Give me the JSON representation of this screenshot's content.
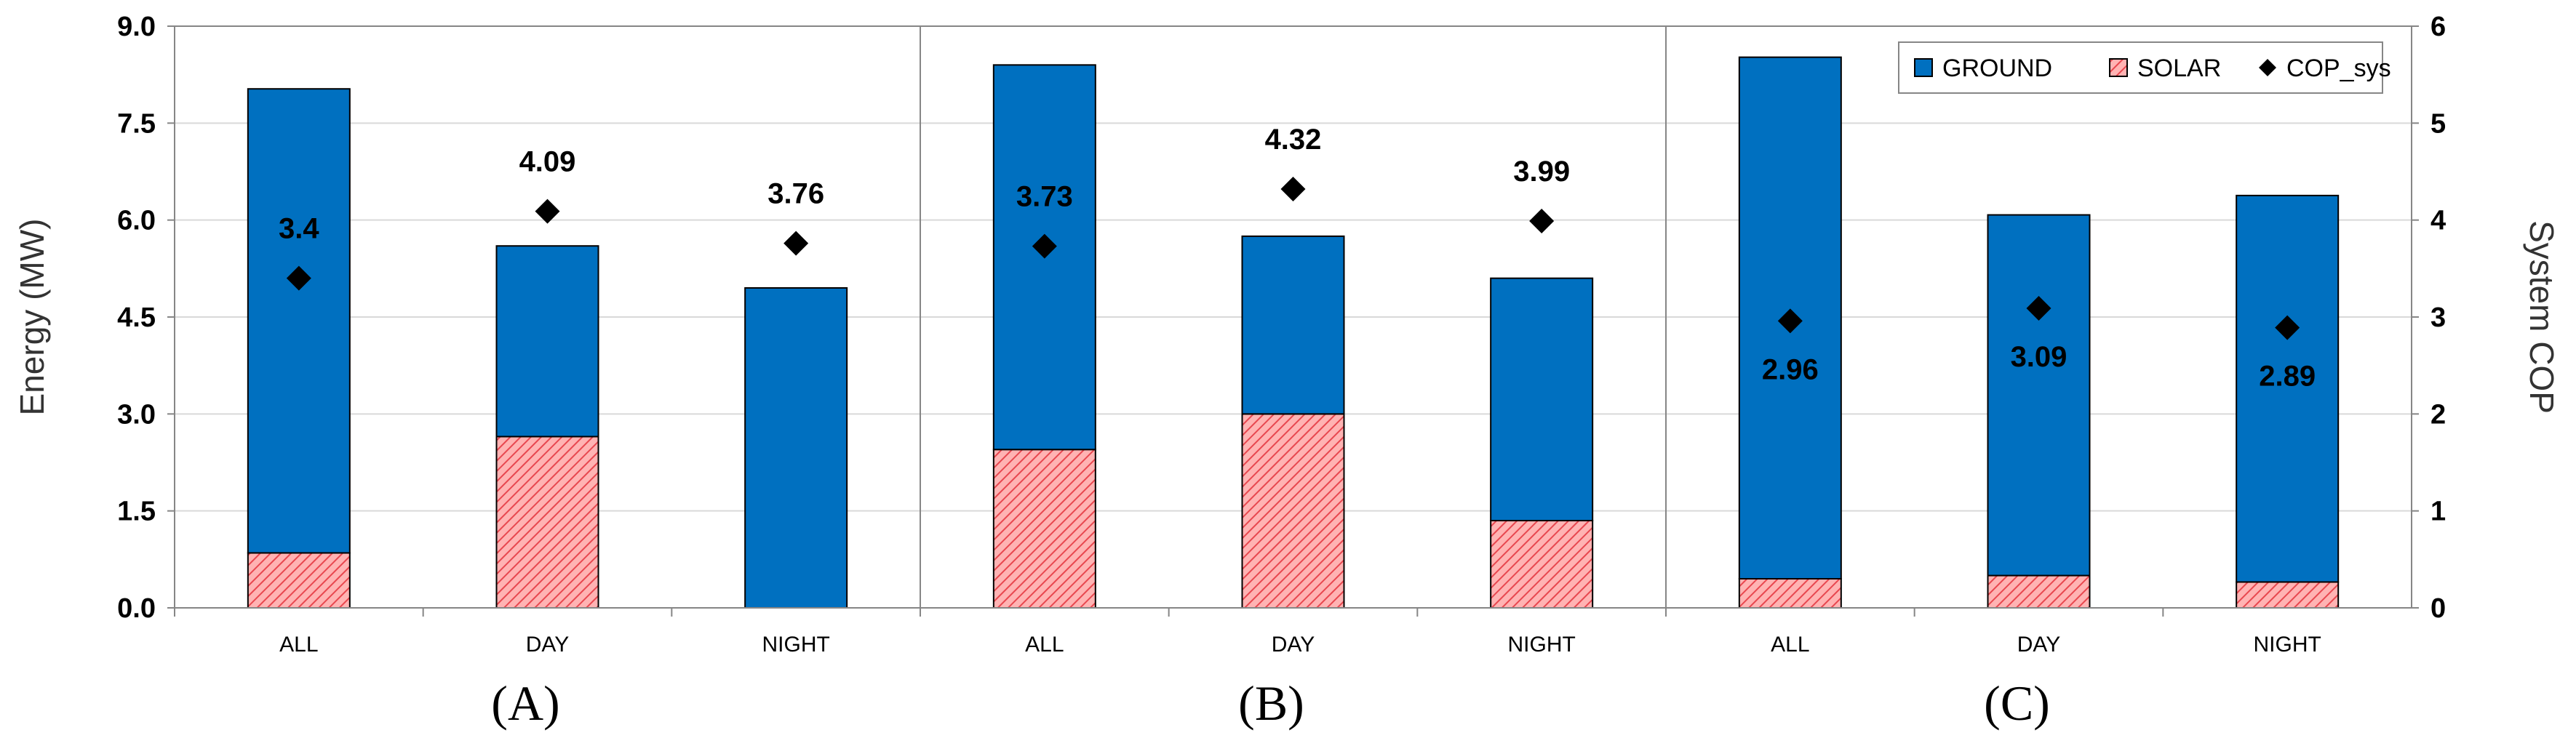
{
  "colors": {
    "ground": "#0070c0",
    "solar": "#ff7c80",
    "cop": "#000000",
    "grid": "#d9d9d9",
    "frame": "#868686"
  },
  "chart_data": {
    "type": "bar",
    "stacked": true,
    "categories": [
      "ALL",
      "DAY",
      "NIGHT"
    ],
    "ylabel": "Energy (MW)",
    "y2label": "System COP",
    "ylim": [
      0,
      9
    ],
    "y_ticks": [
      "0.0",
      "1.5",
      "3.0",
      "4.5",
      "6.0",
      "7.5",
      "9.0"
    ],
    "y2lim": [
      0,
      6
    ],
    "y2_ticks": [
      "0",
      "1",
      "2",
      "3",
      "4",
      "5",
      "6"
    ],
    "grid": true,
    "legend": {
      "position": "top-right",
      "entries": [
        "GROUND",
        "SOLAR",
        "COP_sys"
      ]
    },
    "panels": [
      {
        "label": "(A)",
        "series": [
          {
            "name": "SOLAR",
            "values": [
              0.85,
              2.65,
              0.0
            ]
          },
          {
            "name": "GROUND",
            "values": [
              7.18,
              2.95,
              4.95
            ]
          },
          {
            "name": "COP_sys",
            "axis": "secondary",
            "values": [
              3.4,
              4.09,
              3.76
            ],
            "labels": [
              "3.4",
              "4.09",
              "3.76"
            ]
          }
        ]
      },
      {
        "label": "(B)",
        "series": [
          {
            "name": "SOLAR",
            "values": [
              2.45,
              3.0,
              1.35
            ]
          },
          {
            "name": "GROUND",
            "values": [
              5.95,
              2.75,
              3.75
            ]
          },
          {
            "name": "COP_sys",
            "axis": "secondary",
            "values": [
              3.73,
              4.32,
              3.99
            ],
            "labels": [
              "3.73",
              "4.32",
              "3.99"
            ]
          }
        ]
      },
      {
        "label": "(C)",
        "series": [
          {
            "name": "SOLAR",
            "values": [
              0.45,
              0.5,
              0.4
            ]
          },
          {
            "name": "GROUND",
            "values": [
              8.07,
              5.58,
              5.98
            ]
          },
          {
            "name": "COP_sys",
            "axis": "secondary",
            "values": [
              2.96,
              3.09,
              2.89
            ],
            "labels": [
              "2.96",
              "3.09",
              "2.89"
            ]
          }
        ]
      }
    ]
  }
}
